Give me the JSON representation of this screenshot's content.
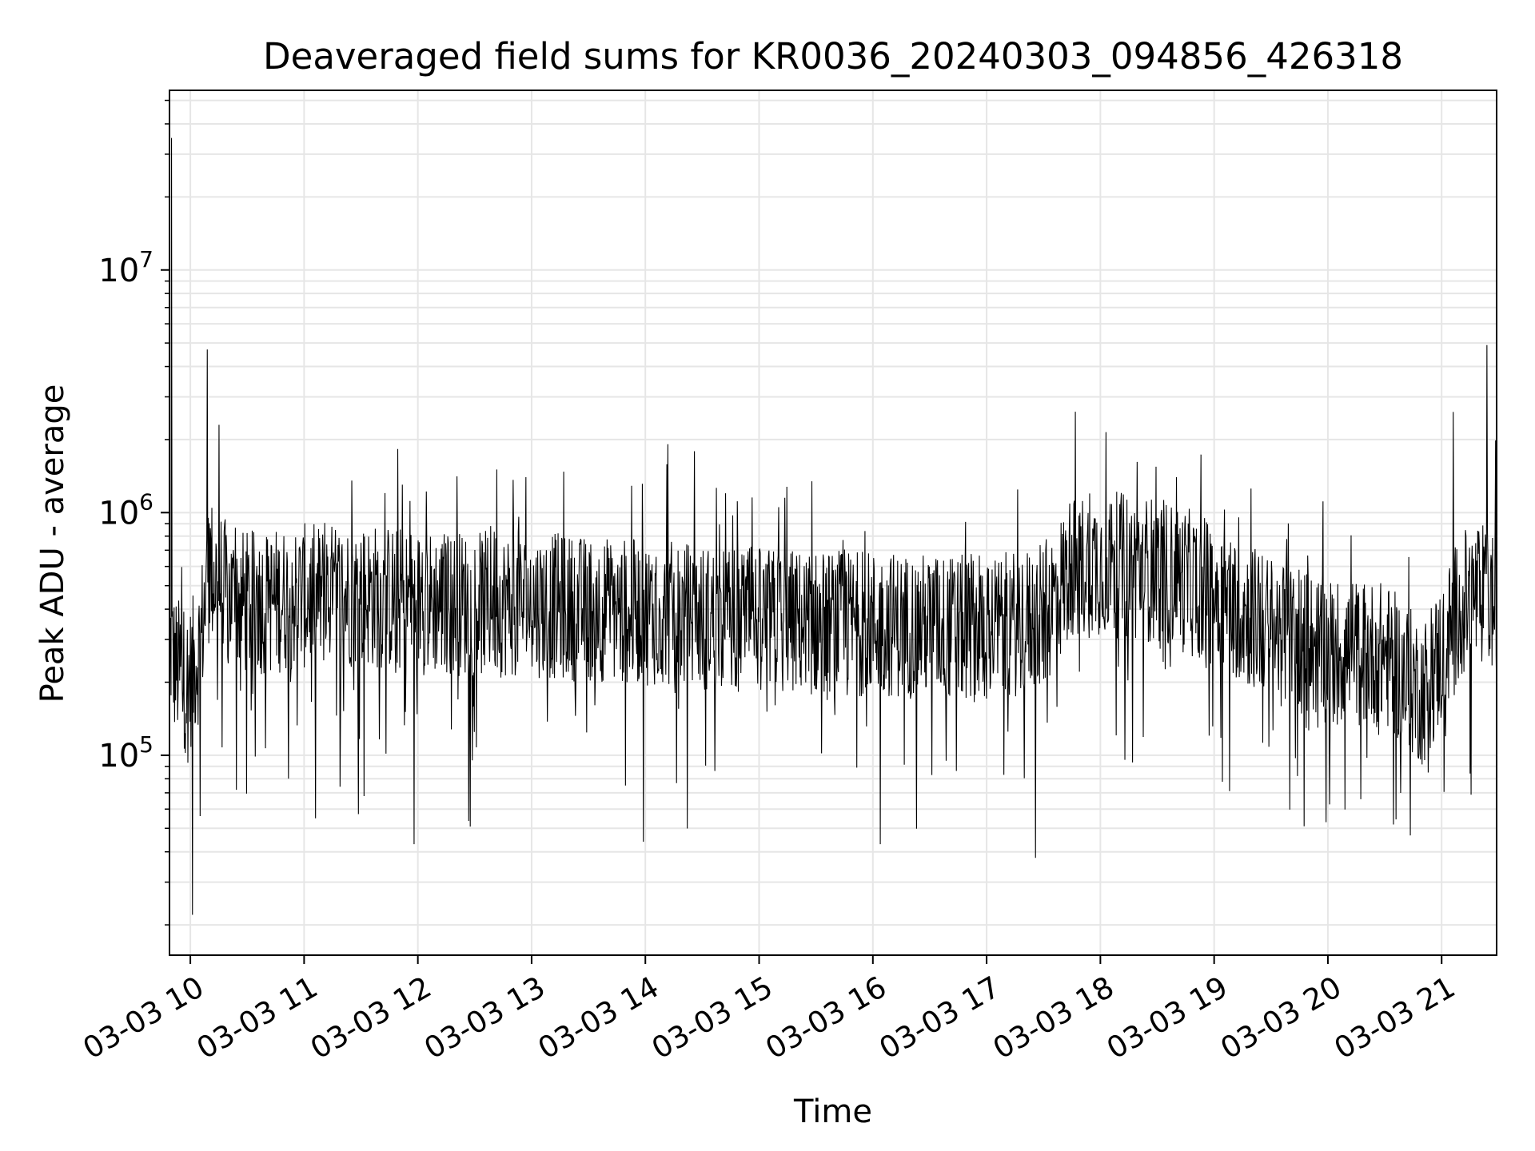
{
  "chart_data": {
    "type": "line",
    "title": "Deaveraged field sums for KR0036_20240303_094856_426318",
    "xlabel": "Time",
    "ylabel": "Peak ADU - average",
    "x_scale": "time",
    "y_scale": "log",
    "xlim": [
      "2024-03-03 09:49",
      "2024-03-03 21:29"
    ],
    "ylim": [
      15000,
      55000000
    ],
    "grid": true,
    "line_color": "#000000",
    "grid_color": "#e6e6e6",
    "x_tick_labels": [
      "03-03 10",
      "03-03 11",
      "03-03 12",
      "03-03 13",
      "03-03 14",
      "03-03 15",
      "03-03 16",
      "03-03 17",
      "03-03 18",
      "03-03 19",
      "03-03 20",
      "03-03 21"
    ],
    "x_tick_values": [
      "2024-03-03 10:00",
      "2024-03-03 11:00",
      "2024-03-03 12:00",
      "2024-03-03 13:00",
      "2024-03-03 14:00",
      "2024-03-03 15:00",
      "2024-03-03 16:00",
      "2024-03-03 17:00",
      "2024-03-03 18:00",
      "2024-03-03 19:00",
      "2024-03-03 20:00",
      "2024-03-03 21:00"
    ],
    "y_ticks": [
      {
        "value": 100000,
        "base": "10",
        "exp": "5"
      },
      {
        "value": 1000000,
        "base": "10",
        "exp": "6"
      },
      {
        "value": 10000000,
        "base": "10",
        "exp": "7"
      }
    ],
    "series": [
      {
        "x": [
          "2024-03-03 09:49",
          "2024-03-03 09:52",
          "2024-03-03 09:55",
          "2024-03-03 09:58",
          "2024-03-03 10:00",
          "2024-03-03 10:05",
          "2024-03-03 10:10",
          "2024-03-03 10:20",
          "2024-03-03 10:30",
          "2024-03-03 11:00",
          "2024-03-03 11:30",
          "2024-03-03 12:00",
          "2024-03-03 12:30",
          "2024-03-03 13:00",
          "2024-03-03 13:30",
          "2024-03-03 14:00",
          "2024-03-03 14:30",
          "2024-03-03 15:00",
          "2024-03-03 15:30",
          "2024-03-03 16:00",
          "2024-03-03 16:30",
          "2024-03-03 17:00",
          "2024-03-03 17:30",
          "2024-03-03 17:45",
          "2024-03-03 18:00",
          "2024-03-03 18:30",
          "2024-03-03 19:00",
          "2024-03-03 19:30",
          "2024-03-03 20:00",
          "2024-03-03 20:30",
          "2024-03-03 20:50",
          "2024-03-03 21:00",
          "2024-03-03 21:10",
          "2024-03-03 21:20",
          "2024-03-03 21:29"
        ],
        "y": [
          300000,
          230000,
          220000,
          200000,
          210000,
          280000,
          600000,
          450000,
          420000,
          450000,
          460000,
          430000,
          420000,
          420000,
          400000,
          390000,
          370000,
          360000,
          350000,
          350000,
          340000,
          330000,
          370000,
          600000,
          620000,
          580000,
          470000,
          330000,
          270000,
          260000,
          180000,
          260000,
          420000,
          460000,
          420000
        ],
        "spikes_max": [
          {
            "x": "2024-03-03 09:50",
            "y": 35000000
          },
          {
            "x": "2024-03-03 10:01",
            "y": 22000
          },
          {
            "x": "2024-03-03 10:09",
            "y": 4700000
          },
          {
            "x": "2024-03-03 10:15",
            "y": 2300000
          },
          {
            "x": "2024-03-03 11:06",
            "y": 55000
          },
          {
            "x": "2024-03-03 11:58",
            "y": 43000
          },
          {
            "x": "2024-03-03 12:57",
            "y": 1400000
          },
          {
            "x": "2024-03-03 13:59",
            "y": 44000
          },
          {
            "x": "2024-03-03 16:04",
            "y": 43000
          },
          {
            "x": "2024-03-03 18:40",
            "y": 1400000
          },
          {
            "x": "2024-03-03 19:59",
            "y": 53000
          },
          {
            "x": "2024-03-03 21:06",
            "y": 2600000
          },
          {
            "x": "2024-03-03 21:24",
            "y": 4900000
          }
        ]
      }
    ]
  }
}
